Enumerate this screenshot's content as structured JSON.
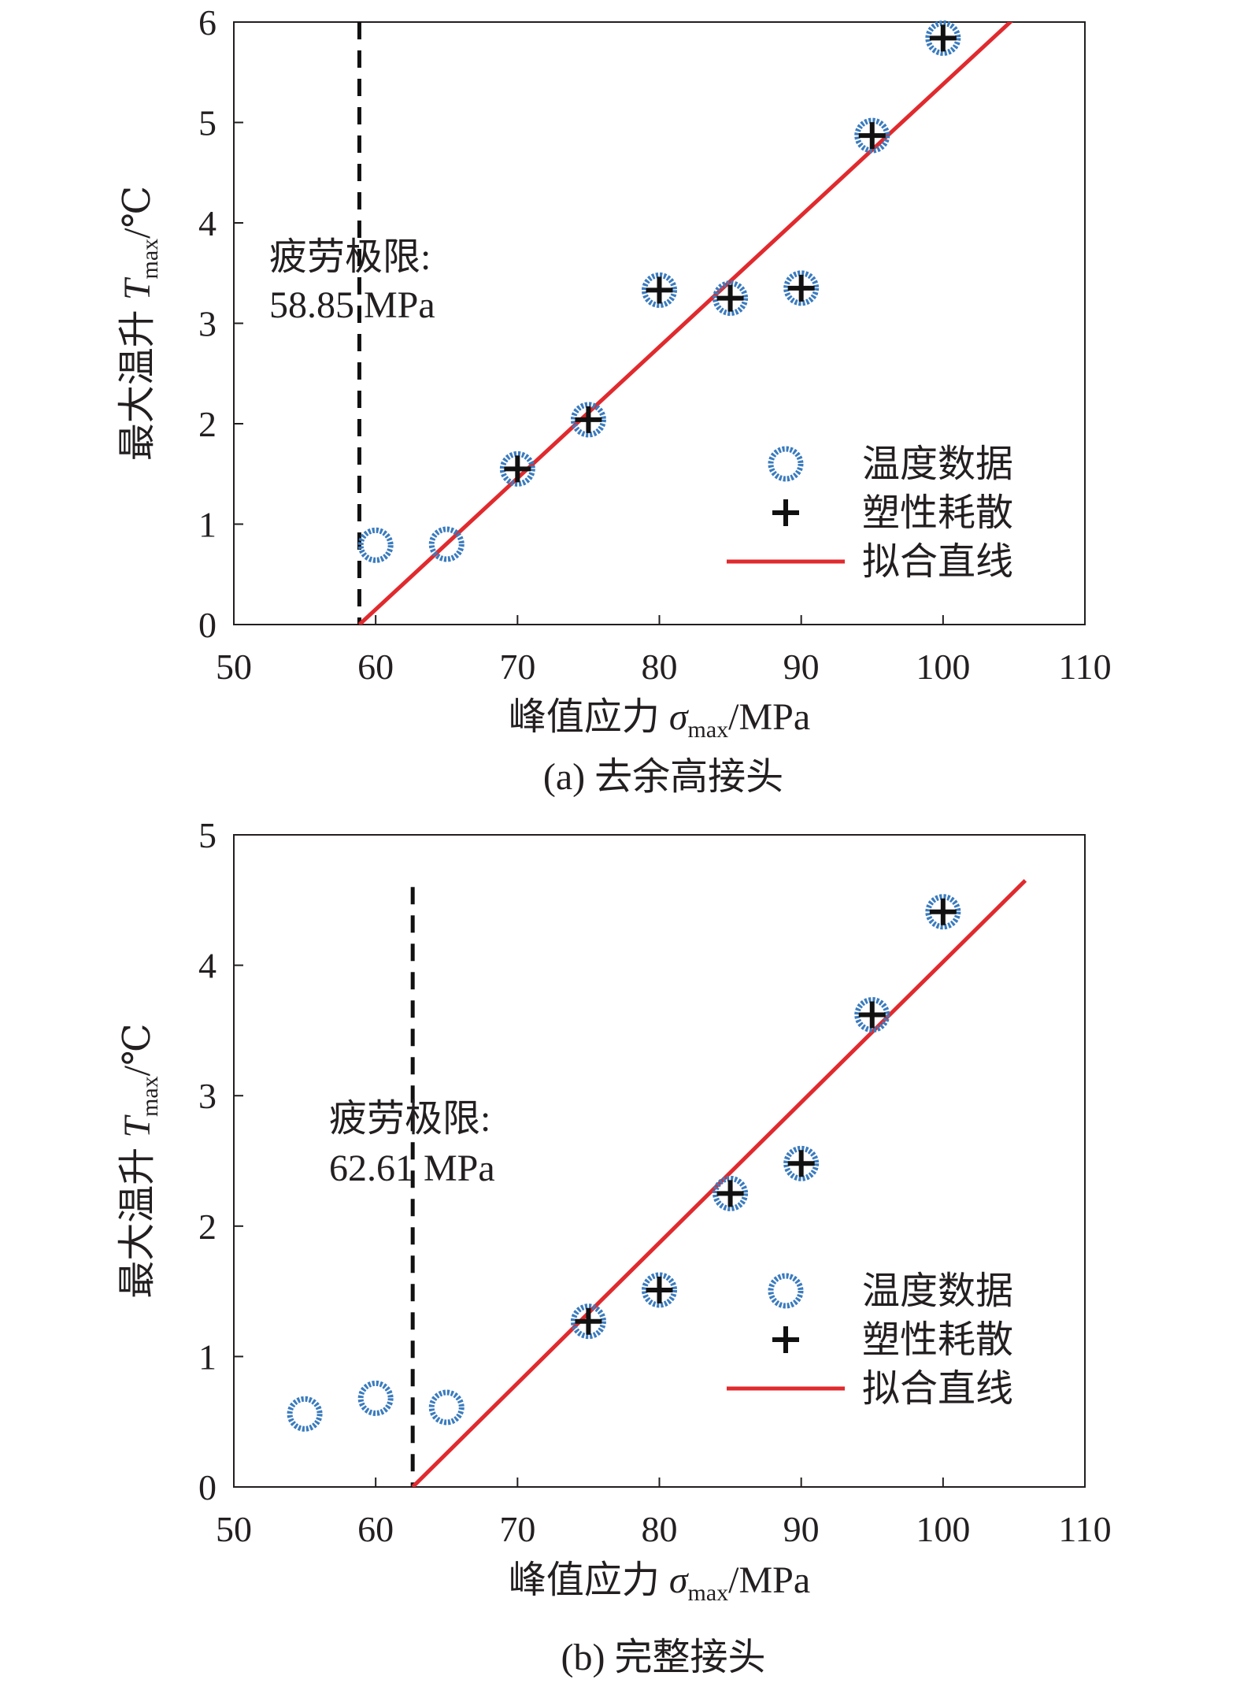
{
  "chart_data": [
    {
      "id": "a",
      "type": "scatter",
      "caption": "(a) 去余高接头",
      "xlabel": {
        "prefix": "峰值应力 ",
        "symbol": "σ",
        "sub": "max",
        "suffix": "/MPa"
      },
      "ylabel": {
        "prefix": "最大温升 ",
        "symbol": "T",
        "sub": "max",
        "suffix": "/℃"
      },
      "xlim": [
        50,
        110
      ],
      "ylim": [
        0,
        6
      ],
      "xticks": [
        "50",
        "60",
        "70",
        "80",
        "90",
        "100",
        "110"
      ],
      "yticks": [
        "0",
        "1",
        "2",
        "3",
        "4",
        "5",
        "6"
      ],
      "temperature_data": [
        [
          60,
          0.79
        ],
        [
          65,
          0.8
        ],
        [
          70,
          1.55
        ],
        [
          75,
          2.04
        ],
        [
          80,
          3.33
        ],
        [
          85,
          3.25
        ],
        [
          90,
          3.35
        ],
        [
          95,
          4.87
        ],
        [
          100,
          5.84
        ]
      ],
      "plastic_dissipation": [
        [
          70,
          1.55
        ],
        [
          75,
          2.04
        ],
        [
          80,
          3.33
        ],
        [
          85,
          3.25
        ],
        [
          90,
          3.35
        ],
        [
          95,
          4.87
        ],
        [
          100,
          5.84
        ]
      ],
      "fit_line": {
        "x": [
          58.85,
          105.5
        ],
        "y": [
          0,
          6.1
        ]
      },
      "fatigue_limit": {
        "x": 58.85,
        "ymax": 6,
        "label": "疲劳极限:",
        "value": "58.85 MPa"
      },
      "legend": {
        "temperature": "温度数据",
        "plastic": "塑性耗散",
        "fit": "拟合直线",
        "placement": "lower-right"
      }
    },
    {
      "id": "b",
      "type": "scatter",
      "caption": "(b) 完整接头",
      "xlabel": {
        "prefix": "峰值应力 ",
        "symbol": "σ",
        "sub": "max",
        "suffix": "/MPa"
      },
      "ylabel": {
        "prefix": "最大温升 ",
        "symbol": "T",
        "sub": "max",
        "suffix": "/℃"
      },
      "xlim": [
        50,
        110
      ],
      "ylim": [
        0,
        5
      ],
      "xticks": [
        "50",
        "60",
        "70",
        "80",
        "90",
        "100",
        "110"
      ],
      "yticks": [
        "0",
        "1",
        "2",
        "3",
        "4",
        "5"
      ],
      "temperature_data": [
        [
          55,
          0.56
        ],
        [
          60,
          0.68
        ],
        [
          65,
          0.61
        ],
        [
          75,
          1.27
        ],
        [
          80,
          1.51
        ],
        [
          85,
          2.25
        ],
        [
          90,
          2.48
        ],
        [
          95,
          3.62
        ],
        [
          100,
          4.41
        ]
      ],
      "plastic_dissipation": [
        [
          75,
          1.27
        ],
        [
          80,
          1.51
        ],
        [
          85,
          2.25
        ],
        [
          90,
          2.48
        ],
        [
          95,
          3.62
        ],
        [
          100,
          4.41
        ]
      ],
      "fit_line": {
        "x": [
          62.61,
          105.8
        ],
        "y": [
          0,
          4.65
        ]
      },
      "fatigue_limit": {
        "x": 62.61,
        "ymax": 4.6,
        "label": "疲劳极限:",
        "value": "62.61 MPa"
      },
      "legend": {
        "temperature": "温度数据",
        "plastic": "塑性耗散",
        "fit": "拟合直线",
        "placement": "lower-right"
      }
    }
  ],
  "colors": {
    "marker_blue": "#3a7bbf",
    "plus_black": "#111111",
    "fit_red": "#e02a2e",
    "axis": "#231f20",
    "dash": "#111111"
  }
}
